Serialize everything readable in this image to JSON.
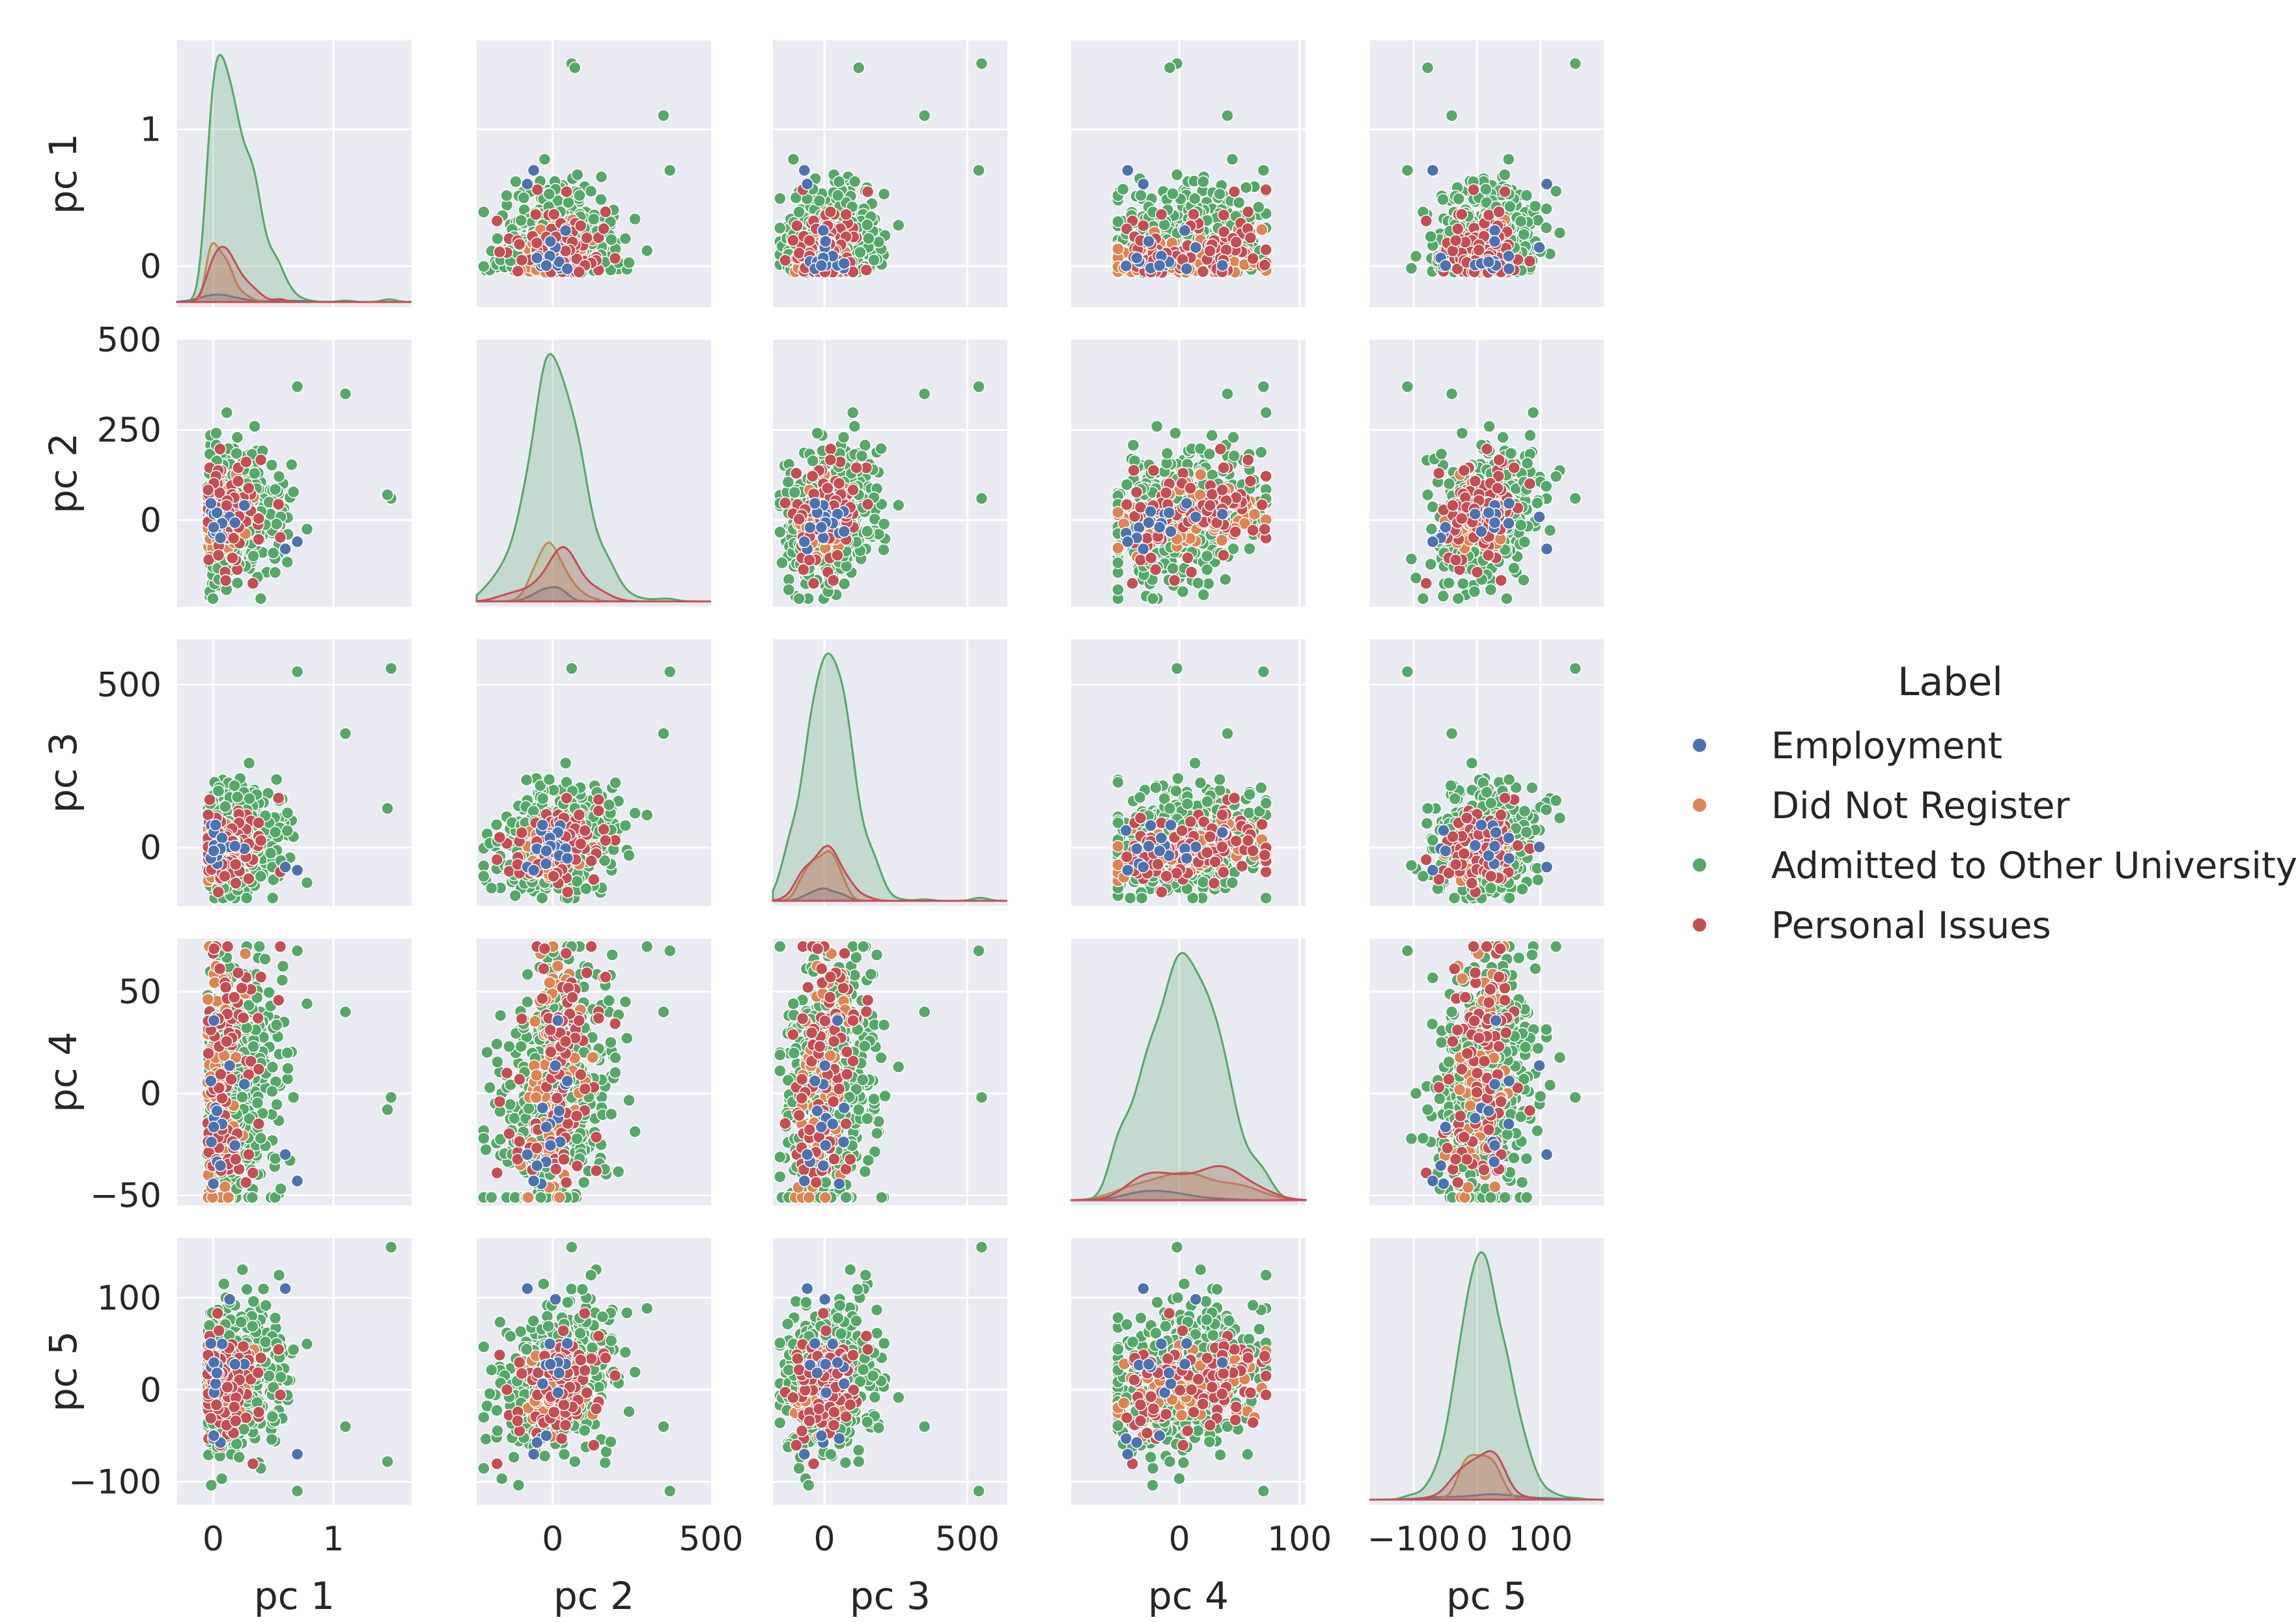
{
  "chart_data": {
    "type": "scatter",
    "title": "",
    "variables": [
      "pc 1",
      "pc 2",
      "pc 3",
      "pc 4",
      "pc 5"
    ],
    "axes": {
      "pc 1": {
        "label": "pc 1",
        "range": [
          -0.3,
          1.65
        ],
        "ticks": [
          0,
          1
        ],
        "tick_labels": [
          "0",
          "1"
        ]
      },
      "pc 2": {
        "label": "pc 2",
        "range": [
          -240,
          500
        ],
        "ticks": [
          0,
          250,
          500
        ],
        "tick_labels": [
          "0",
          "250",
          "500"
        ]
      },
      "pc 3": {
        "label": "pc 3",
        "range": [
          -180,
          640
        ],
        "ticks": [
          0,
          500
        ],
        "tick_labels": [
          "0",
          "500"
        ]
      },
      "pc 4": {
        "label": "pc 4",
        "range": [
          -55,
          76
        ],
        "ticks": [
          -50,
          0,
          50,
          100
        ],
        "tick_labels": [
          "−50",
          "0",
          "50",
          "100"
        ]
      },
      "pc 5": {
        "label": "pc 5",
        "range": [
          -125,
          165
        ],
        "ticks": [
          -100,
          0,
          100
        ],
        "tick_labels": [
          "−100",
          "0",
          "100"
        ]
      }
    },
    "x_axes": {
      "pc 1": {
        "range": [
          -0.3,
          1.65
        ],
        "ticks": [
          0,
          1
        ],
        "tick_labels": [
          "0",
          "1"
        ]
      },
      "pc 2": {
        "range": [
          -240,
          500
        ],
        "ticks": [
          0,
          500
        ],
        "tick_labels": [
          "0",
          "500"
        ]
      },
      "pc 3": {
        "range": [
          -180,
          640
        ],
        "ticks": [
          0,
          500
        ],
        "tick_labels": [
          "0",
          "500"
        ]
      },
      "pc 4": {
        "range": [
          -90,
          105
        ],
        "ticks": [
          0,
          100
        ],
        "tick_labels": [
          "0",
          "100"
        ]
      },
      "pc 5": {
        "range": [
          -170,
          200
        ],
        "ticks": [
          -100,
          0,
          100
        ],
        "tick_labels": [
          "−100",
          "0",
          "100"
        ]
      }
    },
    "legend": {
      "title": "Label",
      "position": "right",
      "entries": [
        {
          "name": "Employment",
          "color": "#4c72b0"
        },
        {
          "name": "Did Not Register",
          "color": "#dd8452"
        },
        {
          "name": "Admitted to Other University",
          "color": "#55a868"
        },
        {
          "name": "Personal Issues",
          "color": "#c44e52"
        }
      ]
    },
    "diagonal": "kde",
    "series_stats": {
      "Employment": {
        "n": 14,
        "means": [
          0.05,
          0,
          0,
          -12,
          0
        ],
        "sds": [
          0.12,
          45,
          40,
          25,
          35
        ]
      },
      "Did Not Register": {
        "n": 70,
        "means": [
          0.02,
          0,
          0,
          5,
          0
        ],
        "sds": [
          0.15,
          50,
          45,
          30,
          25
        ]
      },
      "Admitted to Other University": {
        "n": 520,
        "means": [
          0.12,
          10,
          10,
          5,
          10
        ],
        "sds": [
          0.25,
          85,
          80,
          30,
          35
        ]
      },
      "Personal Issues": {
        "n": 90,
        "means": [
          0.08,
          0,
          0,
          10,
          5
        ],
        "sds": [
          0.2,
          70,
          60,
          35,
          30
        ]
      }
    },
    "outliers": [
      {
        "series": "Admitted to Other University",
        "values": [
          1.48,
          60,
          550,
          -2,
          155
        ]
      },
      {
        "series": "Admitted to Other University",
        "values": [
          1.45,
          70,
          120,
          -8,
          -78
        ]
      },
      {
        "series": "Admitted to Other University",
        "values": [
          1.1,
          350,
          350,
          40,
          -40
        ]
      },
      {
        "series": "Admitted to Other University",
        "values": [
          0.7,
          370,
          540,
          70,
          -110
        ]
      },
      {
        "series": "Employment",
        "values": [
          0.6,
          -80,
          -60,
          -30,
          110
        ]
      },
      {
        "series": "Employment",
        "values": [
          0.7,
          -60,
          -70,
          -43,
          -70
        ]
      }
    ]
  }
}
